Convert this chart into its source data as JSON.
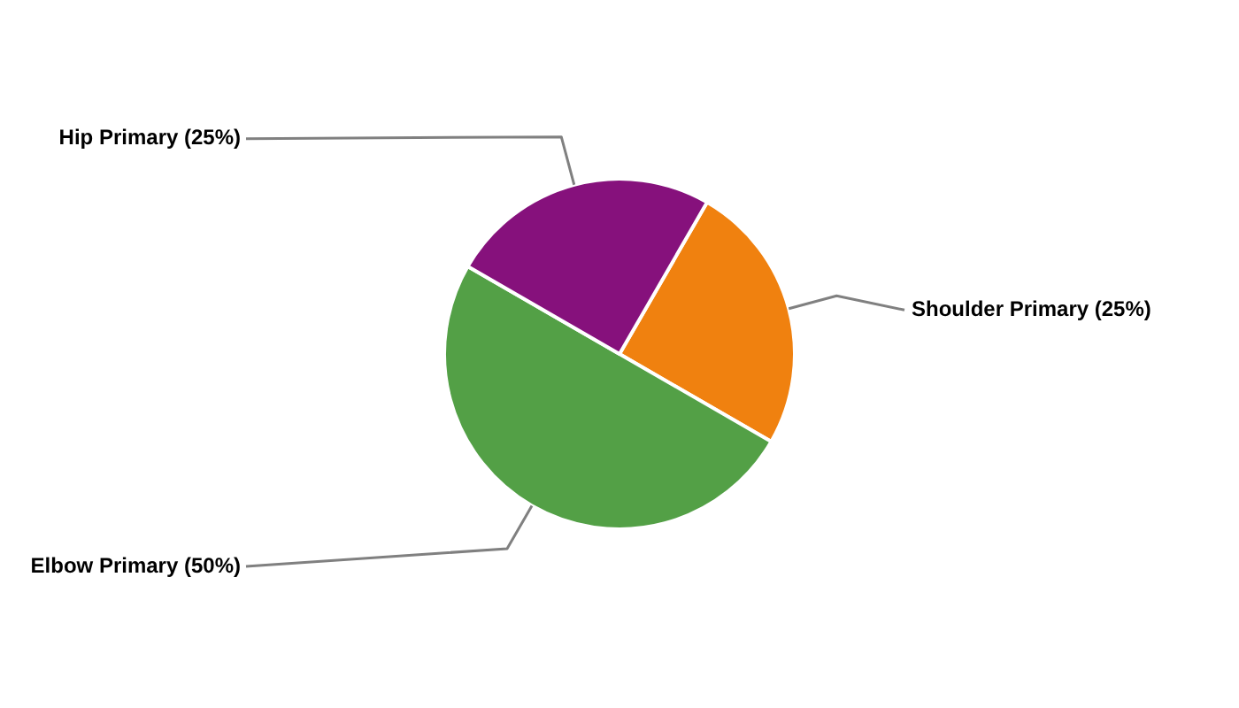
{
  "chart_data": {
    "type": "pie",
    "categories": [
      "Shoulder Primary",
      "Elbow Primary",
      "Hip Primary"
    ],
    "values": [
      25,
      50,
      25
    ],
    "value_labels": [
      "(25%)",
      "(50%)",
      "(25%)"
    ],
    "colors": [
      "#f0810f",
      "#53a046",
      "#86117c"
    ],
    "legend": false
  }
}
